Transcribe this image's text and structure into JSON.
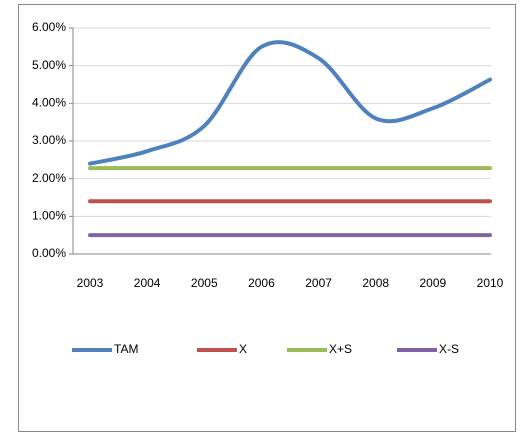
{
  "chart_data": {
    "type": "line",
    "categories": [
      "2003",
      "2004",
      "2005",
      "2006",
      "2007",
      "2008",
      "2009",
      "2010"
    ],
    "series": [
      {
        "name": "TAM",
        "color": "#4f81bd",
        "values": [
          2.4,
          2.73,
          3.4,
          5.5,
          5.2,
          3.6,
          3.87,
          4.63
        ]
      },
      {
        "name": "X",
        "color": "#c0504d",
        "values": [
          1.4,
          1.4,
          1.4,
          1.4,
          1.4,
          1.4,
          1.4,
          1.4
        ]
      },
      {
        "name": "X+S",
        "color": "#9bbb59",
        "values": [
          2.28,
          2.28,
          2.28,
          2.28,
          2.28,
          2.28,
          2.28,
          2.28
        ]
      },
      {
        "name": "X-S",
        "color": "#8064a2",
        "values": [
          0.5,
          0.5,
          0.5,
          0.5,
          0.5,
          0.5,
          0.5,
          0.5
        ]
      }
    ],
    "ylim": [
      0,
      6
    ],
    "yticks": [
      {
        "value": 0,
        "label": "0.00%"
      },
      {
        "value": 1,
        "label": "1.00%"
      },
      {
        "value": 2,
        "label": "2.00%"
      },
      {
        "value": 3,
        "label": "3.00%"
      },
      {
        "value": 4,
        "label": "4.00%"
      },
      {
        "value": 5,
        "label": "5.00%"
      },
      {
        "value": 6,
        "label": "6.00%"
      }
    ],
    "grid": true,
    "smooth": true,
    "legend": "bottom"
  }
}
